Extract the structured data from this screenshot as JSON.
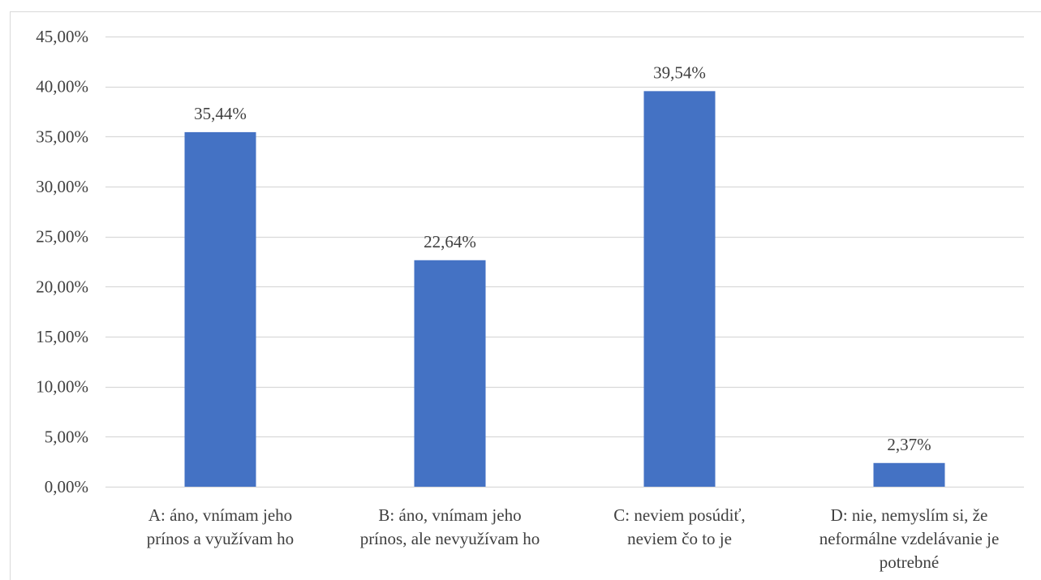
{
  "chart_data": {
    "type": "bar",
    "categories": [
      "A: áno, vnímam jeho prínos a využívam ho",
      "B: áno, vnímam jeho prínos, ale nevyužívam ho",
      "C: neviem posúdiť, neviem čo to je",
      "D: nie, nemyslím si, že neformálne vzdelávanie je potrebné"
    ],
    "category_lines": [
      [
        "A: áno, vnímam jeho",
        "prínos a využívam ho"
      ],
      [
        "B: áno, vnímam jeho",
        "prínos, ale nevyužívam ho"
      ],
      [
        "C: neviem posúdiť,",
        "neviem čo to je"
      ],
      [
        "D: nie, nemyslím si, že",
        "neformálne vzdelávanie je",
        "potrebné"
      ]
    ],
    "values": [
      35.44,
      22.64,
      39.54,
      2.37
    ],
    "data_labels": [
      "35,44%",
      "22,64%",
      "39,54%",
      "2,37%"
    ],
    "ylim": [
      0,
      45
    ],
    "y_ticks": [
      0,
      5,
      10,
      15,
      20,
      25,
      30,
      35,
      40,
      45
    ],
    "y_tick_labels": [
      "0,00%",
      "5,00%",
      "10,00%",
      "15,00%",
      "20,00%",
      "25,00%",
      "30,00%",
      "35,00%",
      "40,00%",
      "45,00%"
    ],
    "title": "",
    "xlabel": "",
    "ylabel": "",
    "grid": true,
    "legend": "none",
    "colors": {
      "bar": "#4472c4",
      "grid": "#d9d9d9",
      "axis": "#d9d9d9",
      "text": "#404040"
    }
  }
}
